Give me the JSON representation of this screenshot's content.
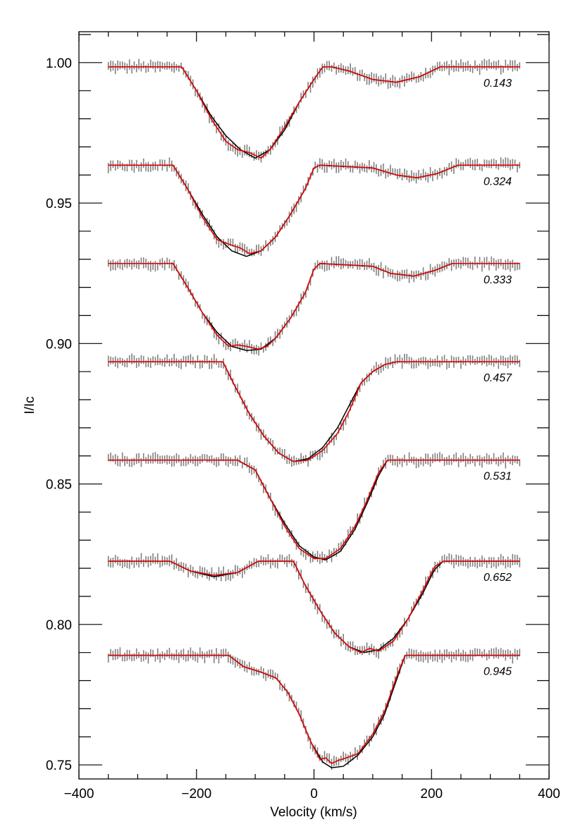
{
  "chart_data": {
    "type": "line",
    "title": "",
    "xlabel": "Velocity (km/s)",
    "ylabel": "I/Ic",
    "xlim": [
      -400,
      400
    ],
    "ylim": [
      0.745,
      1.011
    ],
    "grid": false,
    "legend": "none",
    "x_major_ticks": [
      -400,
      -200,
      0,
      200,
      400
    ],
    "x_tick_labels": [
      "−400",
      "−200",
      "0",
      "200",
      "400"
    ],
    "x_minor_step": 50,
    "y_major_ticks": [
      0.75,
      0.8,
      0.85,
      0.9,
      0.95,
      1.0
    ],
    "y_tick_labels": [
      "0.75",
      "0.80",
      "0.85",
      "0.90",
      "0.95",
      "1.00"
    ],
    "y_minor_step": 0.01,
    "velocity_range": [
      -350,
      350
    ],
    "colors": {
      "observed": "#808080",
      "model_black": "#000000",
      "model_red": "#e00000"
    },
    "profiles": [
      {
        "phase": "0.143",
        "continuum": 0.9985,
        "black": [
          [
            -350,
            0.9985
          ],
          [
            -225,
            0.9985
          ],
          [
            -200,
            0.99
          ],
          [
            -175,
            0.981
          ],
          [
            -150,
            0.974
          ],
          [
            -125,
            0.969
          ],
          [
            -100,
            0.966
          ],
          [
            -75,
            0.969
          ],
          [
            -50,
            0.976
          ],
          [
            -25,
            0.986
          ],
          [
            0,
            0.994
          ],
          [
            15,
            0.9985
          ],
          [
            30,
            0.9985
          ],
          [
            60,
            0.997
          ],
          [
            100,
            0.994
          ],
          [
            140,
            0.993
          ],
          [
            180,
            0.995
          ],
          [
            215,
            0.9985
          ],
          [
            350,
            0.9985
          ]
        ],
        "red": [
          [
            -350,
            0.9985
          ],
          [
            -225,
            0.9985
          ],
          [
            -200,
            0.99
          ],
          [
            -175,
            0.98
          ],
          [
            -150,
            0.972
          ],
          [
            -130,
            0.969
          ],
          [
            -110,
            0.968
          ],
          [
            -90,
            0.966
          ],
          [
            -75,
            0.969
          ],
          [
            -50,
            0.977
          ],
          [
            -25,
            0.986
          ],
          [
            0,
            0.994
          ],
          [
            15,
            0.9985
          ],
          [
            30,
            0.9985
          ],
          [
            60,
            0.997
          ],
          [
            100,
            0.994
          ],
          [
            140,
            0.993
          ],
          [
            180,
            0.995
          ],
          [
            215,
            0.9985
          ],
          [
            350,
            0.9985
          ]
        ]
      },
      {
        "phase": "0.324",
        "continuum": 0.9635,
        "black": [
          [
            -350,
            0.9635
          ],
          [
            -240,
            0.9635
          ],
          [
            -215,
            0.955
          ],
          [
            -190,
            0.946
          ],
          [
            -165,
            0.938
          ],
          [
            -140,
            0.933
          ],
          [
            -115,
            0.931
          ],
          [
            -90,
            0.933
          ],
          [
            -65,
            0.938
          ],
          [
            -40,
            0.946
          ],
          [
            -15,
            0.955
          ],
          [
            0,
            0.9625
          ],
          [
            10,
            0.9635
          ],
          [
            100,
            0.9625
          ],
          [
            140,
            0.96
          ],
          [
            175,
            0.959
          ],
          [
            210,
            0.9605
          ],
          [
            245,
            0.9635
          ],
          [
            350,
            0.9635
          ]
        ],
        "red": [
          [
            -350,
            0.9635
          ],
          [
            -240,
            0.9635
          ],
          [
            -215,
            0.955
          ],
          [
            -190,
            0.945
          ],
          [
            -165,
            0.937
          ],
          [
            -140,
            0.935
          ],
          [
            -125,
            0.934
          ],
          [
            -110,
            0.932
          ],
          [
            -90,
            0.933
          ],
          [
            -65,
            0.938
          ],
          [
            -40,
            0.946
          ],
          [
            -15,
            0.955
          ],
          [
            0,
            0.9625
          ],
          [
            10,
            0.9635
          ],
          [
            100,
            0.9625
          ],
          [
            140,
            0.96
          ],
          [
            175,
            0.959
          ],
          [
            210,
            0.9605
          ],
          [
            245,
            0.9635
          ],
          [
            350,
            0.9635
          ]
        ]
      },
      {
        "phase": "0.333",
        "continuum": 0.9285,
        "black": [
          [
            -350,
            0.9285
          ],
          [
            -240,
            0.9285
          ],
          [
            -215,
            0.92
          ],
          [
            -190,
            0.911
          ],
          [
            -165,
            0.904
          ],
          [
            -140,
            0.899
          ],
          [
            -115,
            0.8975
          ],
          [
            -90,
            0.898
          ],
          [
            -65,
            0.902
          ],
          [
            -40,
            0.909
          ],
          [
            -15,
            0.918
          ],
          [
            0,
            0.9265
          ],
          [
            10,
            0.9285
          ],
          [
            100,
            0.9275
          ],
          [
            130,
            0.925
          ],
          [
            170,
            0.924
          ],
          [
            205,
            0.926
          ],
          [
            235,
            0.9285
          ],
          [
            350,
            0.9285
          ]
        ],
        "red": [
          [
            -350,
            0.9285
          ],
          [
            -240,
            0.9285
          ],
          [
            -215,
            0.92
          ],
          [
            -190,
            0.911
          ],
          [
            -165,
            0.903
          ],
          [
            -145,
            0.899
          ],
          [
            -130,
            0.8995
          ],
          [
            -115,
            0.899
          ],
          [
            -95,
            0.898
          ],
          [
            -80,
            0.899
          ],
          [
            -65,
            0.902
          ],
          [
            -40,
            0.909
          ],
          [
            -15,
            0.918
          ],
          [
            0,
            0.9265
          ],
          [
            10,
            0.9285
          ],
          [
            100,
            0.9275
          ],
          [
            130,
            0.925
          ],
          [
            170,
            0.924
          ],
          [
            205,
            0.926
          ],
          [
            235,
            0.9285
          ],
          [
            350,
            0.9285
          ]
        ]
      },
      {
        "phase": "0.457",
        "continuum": 0.8935,
        "black": [
          [
            -350,
            0.8935
          ],
          [
            -155,
            0.8935
          ],
          [
            -135,
            0.885
          ],
          [
            -110,
            0.875
          ],
          [
            -85,
            0.867
          ],
          [
            -60,
            0.861
          ],
          [
            -35,
            0.858
          ],
          [
            -10,
            0.859
          ],
          [
            15,
            0.863
          ],
          [
            40,
            0.87
          ],
          [
            60,
            0.878
          ],
          [
            80,
            0.886
          ],
          [
            100,
            0.89
          ],
          [
            120,
            0.8925
          ],
          [
            140,
            0.8935
          ],
          [
            350,
            0.8935
          ]
        ],
        "red": [
          [
            -350,
            0.8935
          ],
          [
            -155,
            0.8935
          ],
          [
            -135,
            0.885
          ],
          [
            -110,
            0.875
          ],
          [
            -85,
            0.867
          ],
          [
            -60,
            0.861
          ],
          [
            -35,
            0.858
          ],
          [
            -10,
            0.8585
          ],
          [
            15,
            0.862
          ],
          [
            40,
            0.868
          ],
          [
            60,
            0.876
          ],
          [
            80,
            0.886
          ],
          [
            100,
            0.89
          ],
          [
            120,
            0.8925
          ],
          [
            140,
            0.8935
          ],
          [
            350,
            0.8935
          ]
        ]
      },
      {
        "phase": "0.531",
        "continuum": 0.8585,
        "black": [
          [
            -350,
            0.8585
          ],
          [
            -130,
            0.8585
          ],
          [
            -100,
            0.855
          ],
          [
            -75,
            0.845
          ],
          [
            -50,
            0.836
          ],
          [
            -25,
            0.828
          ],
          [
            0,
            0.824
          ],
          [
            20,
            0.823
          ],
          [
            45,
            0.826
          ],
          [
            70,
            0.834
          ],
          [
            90,
            0.843
          ],
          [
            110,
            0.853
          ],
          [
            125,
            0.8585
          ],
          [
            350,
            0.8585
          ]
        ],
        "red": [
          [
            -350,
            0.8585
          ],
          [
            -130,
            0.8585
          ],
          [
            -100,
            0.855
          ],
          [
            -75,
            0.845
          ],
          [
            -50,
            0.835
          ],
          [
            -25,
            0.827
          ],
          [
            0,
            0.8235
          ],
          [
            20,
            0.8235
          ],
          [
            45,
            0.827
          ],
          [
            70,
            0.835
          ],
          [
            90,
            0.844
          ],
          [
            110,
            0.854
          ],
          [
            125,
            0.8585
          ],
          [
            350,
            0.8585
          ]
        ]
      },
      {
        "phase": "0.652",
        "continuum": 0.8225,
        "black": [
          [
            -350,
            0.8225
          ],
          [
            -245,
            0.8225
          ],
          [
            -210,
            0.819
          ],
          [
            -170,
            0.817
          ],
          [
            -130,
            0.8185
          ],
          [
            -95,
            0.8225
          ],
          [
            -35,
            0.8225
          ],
          [
            -15,
            0.814
          ],
          [
            10,
            0.805
          ],
          [
            35,
            0.797
          ],
          [
            60,
            0.792
          ],
          [
            85,
            0.79
          ],
          [
            110,
            0.791
          ],
          [
            135,
            0.795
          ],
          [
            160,
            0.802
          ],
          [
            185,
            0.811
          ],
          [
            205,
            0.8195
          ],
          [
            220,
            0.8225
          ],
          [
            350,
            0.8225
          ]
        ],
        "red": [
          [
            -350,
            0.8225
          ],
          [
            -245,
            0.8225
          ],
          [
            -210,
            0.819
          ],
          [
            -170,
            0.8175
          ],
          [
            -130,
            0.8185
          ],
          [
            -95,
            0.8225
          ],
          [
            -35,
            0.8225
          ],
          [
            -15,
            0.814
          ],
          [
            10,
            0.805
          ],
          [
            35,
            0.797
          ],
          [
            60,
            0.792
          ],
          [
            80,
            0.79
          ],
          [
            95,
            0.7915
          ],
          [
            110,
            0.7905
          ],
          [
            135,
            0.794
          ],
          [
            160,
            0.802
          ],
          [
            185,
            0.812
          ],
          [
            205,
            0.8205
          ],
          [
            220,
            0.8225
          ],
          [
            350,
            0.8225
          ]
        ]
      },
      {
        "phase": "0.945",
        "continuum": 0.789,
        "black": [
          [
            -350,
            0.789
          ],
          [
            -145,
            0.789
          ],
          [
            -120,
            0.785
          ],
          [
            -90,
            0.783
          ],
          [
            -65,
            0.781
          ],
          [
            -45,
            0.776
          ],
          [
            -25,
            0.768
          ],
          [
            -5,
            0.758
          ],
          [
            15,
            0.751
          ],
          [
            30,
            0.749
          ],
          [
            50,
            0.7495
          ],
          [
            75,
            0.7535
          ],
          [
            100,
            0.76
          ],
          [
            120,
            0.768
          ],
          [
            140,
            0.78
          ],
          [
            155,
            0.789
          ],
          [
            350,
            0.789
          ]
        ],
        "red": [
          [
            -350,
            0.789
          ],
          [
            -145,
            0.789
          ],
          [
            -120,
            0.785
          ],
          [
            -90,
            0.783
          ],
          [
            -65,
            0.781
          ],
          [
            -45,
            0.776
          ],
          [
            -25,
            0.768
          ],
          [
            -5,
            0.758
          ],
          [
            10,
            0.752
          ],
          [
            20,
            0.7525
          ],
          [
            30,
            0.7505
          ],
          [
            40,
            0.7515
          ],
          [
            55,
            0.7525
          ],
          [
            75,
            0.754
          ],
          [
            100,
            0.761
          ],
          [
            120,
            0.769
          ],
          [
            140,
            0.781
          ],
          [
            155,
            0.789
          ],
          [
            350,
            0.789
          ]
        ]
      }
    ]
  }
}
